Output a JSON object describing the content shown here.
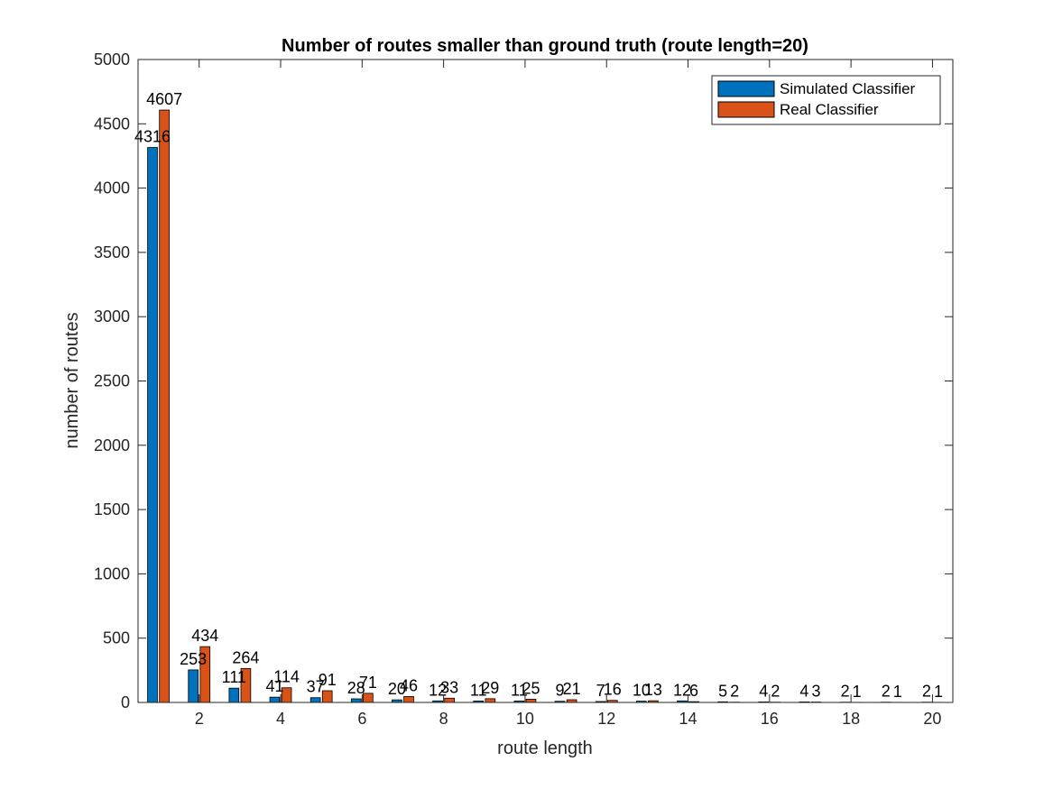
{
  "chart_data": {
    "type": "bar",
    "title": "Number of routes smaller than ground truth (route length=20)",
    "xlabel": "route length",
    "ylabel": "number of routes",
    "x": [
      1,
      2,
      3,
      4,
      5,
      6,
      7,
      8,
      9,
      10,
      11,
      12,
      13,
      14,
      15,
      16,
      17,
      18,
      19,
      20
    ],
    "xticks": [
      "2",
      "4",
      "6",
      "8",
      "10",
      "12",
      "14",
      "16",
      "18",
      "20"
    ],
    "yticks": [
      "0",
      "500",
      "1000",
      "1500",
      "2000",
      "2500",
      "3000",
      "3500",
      "4000",
      "4500",
      "5000"
    ],
    "xlim": [
      0.5,
      20.5
    ],
    "ylim": [
      0,
      5000
    ],
    "legend_position": "top-right",
    "series": [
      {
        "name": "Simulated Classifier",
        "color": "#0072BD",
        "values": [
          4316,
          253,
          111,
          41,
          37,
          28,
          20,
          12,
          11,
          11,
          9,
          7,
          10,
          12,
          5,
          4,
          4,
          2,
          2,
          2
        ]
      },
      {
        "name": "Real Classifier",
        "color": "#D95319",
        "values": [
          4607,
          434,
          264,
          114,
          91,
          71,
          46,
          33,
          29,
          25,
          21,
          16,
          13,
          6,
          2,
          2,
          3,
          1,
          1,
          1
        ]
      }
    ]
  }
}
